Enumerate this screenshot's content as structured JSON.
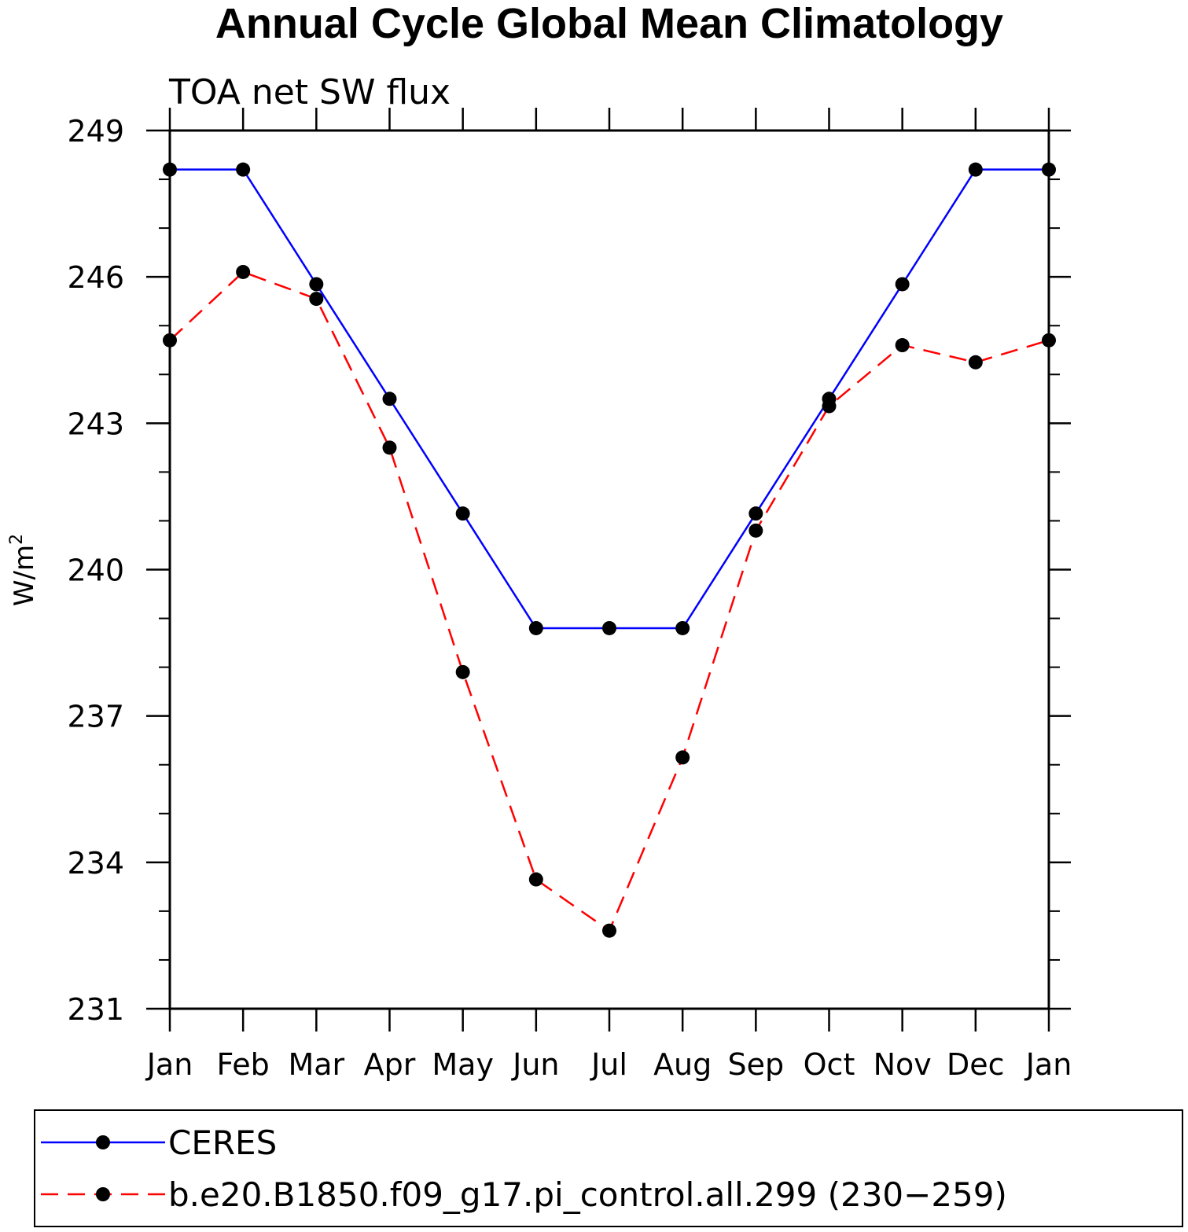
{
  "chart_data": {
    "type": "line",
    "title": "Annual Cycle Global Mean Climatology",
    "subtitle": "TOA net SW flux",
    "ylabel": "W/m",
    "ylabel_superscript": "2",
    "xlabel": "",
    "categories": [
      "Jan",
      "Feb",
      "Mar",
      "Apr",
      "May",
      "Jun",
      "Jul",
      "Aug",
      "Sep",
      "Oct",
      "Nov",
      "Dec",
      "Jan"
    ],
    "ylim": [
      231,
      249
    ],
    "yticks": [
      231,
      234,
      237,
      240,
      243,
      246,
      249
    ],
    "yticks_labels": [
      "231",
      "234",
      "237",
      "240",
      "243",
      "246",
      "249"
    ],
    "grid": false,
    "legend_position": "bottom",
    "series": [
      {
        "name": "CERES",
        "color": "#0000ff",
        "dash": "solid",
        "values": [
          248.2,
          248.2,
          245.85,
          243.5,
          241.15,
          238.8,
          238.8,
          238.8,
          241.15,
          243.5,
          245.85,
          248.2,
          248.2
        ]
      },
      {
        "name": "b.e20.B1850.f09_g17.pi_control.all.299 (230−259)",
        "color": "#ff0000",
        "dash": "dashed",
        "values": [
          244.7,
          246.1,
          245.55,
          242.5,
          237.9,
          233.65,
          232.6,
          236.15,
          240.8,
          243.35,
          244.6,
          244.25,
          244.7
        ]
      }
    ]
  }
}
